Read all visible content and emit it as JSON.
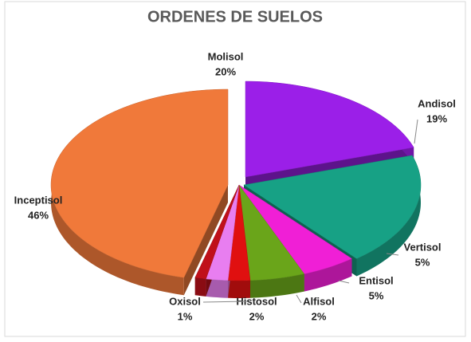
{
  "chart_data": {
    "type": "pie",
    "title": "ORDENES DE SUELOS",
    "categories": [
      "Molisol",
      "Andisol",
      "Vertisol",
      "Entisol",
      "Alfisol",
      "Histosol",
      "Oxisol",
      "Inceptisol"
    ],
    "values": [
      20,
      19,
      5,
      5,
      2,
      2,
      1,
      46
    ],
    "value_labels": [
      "20%",
      "19%",
      "5%",
      "5%",
      "2%",
      "2%",
      "1%",
      "46%"
    ],
    "colors": [
      "#9b1fe8",
      "#17a185",
      "#f01fd6",
      "#6aa51a",
      "#e01010",
      "#e87ef0",
      "#c0101a",
      "#f0793a"
    ]
  }
}
